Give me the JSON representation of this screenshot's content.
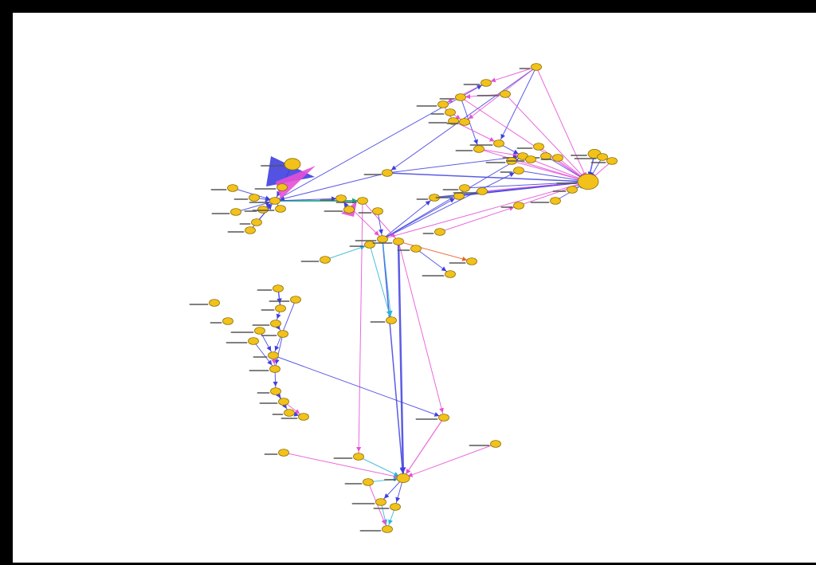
{
  "colors": {
    "frame": "#000000",
    "background": "#ffffff",
    "node_fill": "#f2c21b",
    "node_stroke": "#8a6d00",
    "edge_blue": "#3f3fe0",
    "edge_magenta": "#e64fd6",
    "edge_cyan": "#29b6d8",
    "edge_green": "#20a58a",
    "edge_orange": "#e8622a"
  },
  "graph": {
    "labels_legible": false
  }
}
